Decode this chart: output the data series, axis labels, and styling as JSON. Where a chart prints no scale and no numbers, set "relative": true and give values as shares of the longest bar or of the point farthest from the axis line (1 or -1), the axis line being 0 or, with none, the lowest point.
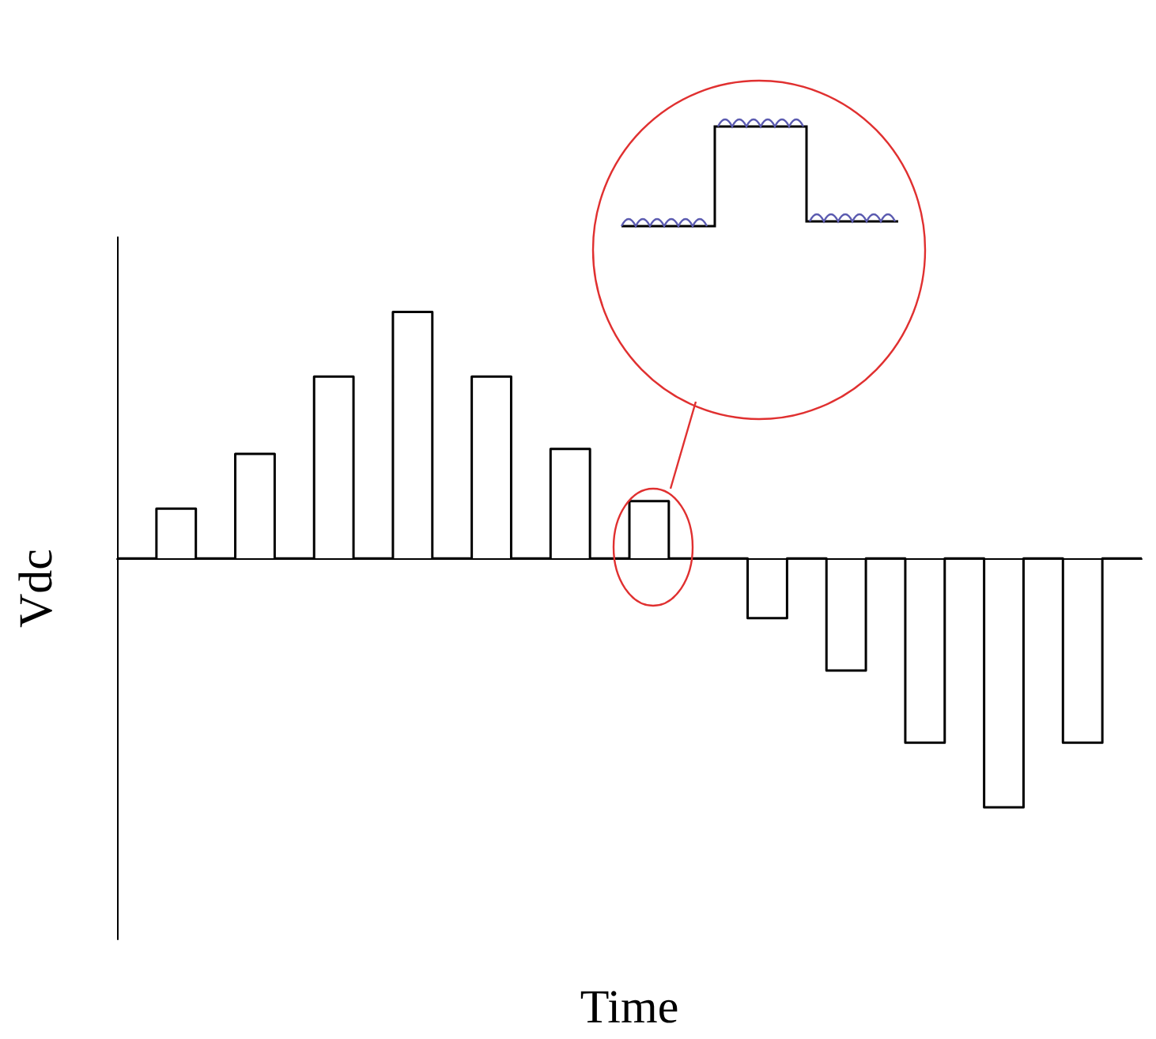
{
  "chart_data": {
    "type": "step",
    "xlabel": "Time",
    "ylabel": "Vdc",
    "relative": true,
    "categories": [
      null,
      null,
      null,
      null,
      null,
      null,
      null,
      null,
      null,
      null,
      null,
      null,
      null,
      null,
      null,
      null,
      null,
      null,
      null,
      null,
      null,
      null,
      null,
      null,
      null,
      null,
      null
    ],
    "series": [
      {
        "color": "#000000",
        "values": [
          0,
          0.2,
          0,
          0.42,
          0,
          0.73,
          0,
          0.99,
          0,
          0.73,
          0,
          0.44,
          0,
          0.23,
          0,
          0,
          -0.24,
          0,
          -0.45,
          0,
          -0.74,
          0,
          -1,
          0,
          -0.74,
          0,
          0
        ]
      }
    ],
    "grid": false,
    "marker": "none",
    "line_style": "solid"
  }
}
